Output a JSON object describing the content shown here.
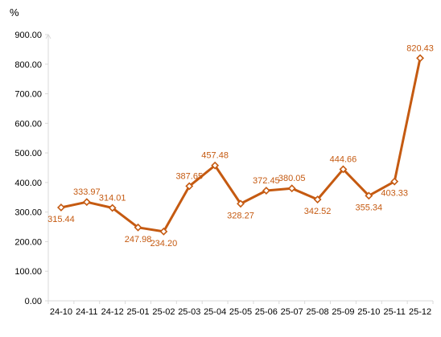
{
  "chart_data": {
    "type": "line",
    "unit_label": "%",
    "categories": [
      "24-10",
      "24-11",
      "24-12",
      "25-01",
      "25-02",
      "25-03",
      "25-04",
      "25-05",
      "25-06",
      "25-07",
      "25-08",
      "25-09",
      "25-10",
      "25-11",
      "25-12"
    ],
    "series": [
      {
        "values": [
          315.44,
          333.97,
          314.01,
          247.98,
          234.2,
          387.65,
          457.48,
          328.27,
          372.45,
          380.05,
          342.52,
          444.66,
          355.34,
          403.33,
          820.43
        ],
        "labels": [
          "315.44",
          "333.97",
          "314.01",
          "247.98",
          "234.20",
          "387.65",
          "457.48",
          "328.27",
          "372.45",
          "380.05",
          "342.52",
          "444.66",
          "355.34",
          "403.33",
          "820.43"
        ],
        "label_positions": [
          "below",
          "above",
          "above",
          "below",
          "below",
          "above",
          "above",
          "below",
          "above",
          "above",
          "below",
          "above",
          "below",
          "below",
          "above"
        ],
        "color": "#C55A11",
        "label_color": "#C55A11"
      }
    ],
    "ylim": [
      0,
      900
    ],
    "yticks": [
      "0.00",
      "100.00",
      "200.00",
      "300.00",
      "400.00",
      "500.00",
      "600.00",
      "700.00",
      "800.00",
      "900.00"
    ],
    "ytick_values": [
      0,
      100,
      200,
      300,
      400,
      500,
      600,
      700,
      800,
      900
    ],
    "grid": false,
    "axis_color": "#D9D9D9"
  }
}
